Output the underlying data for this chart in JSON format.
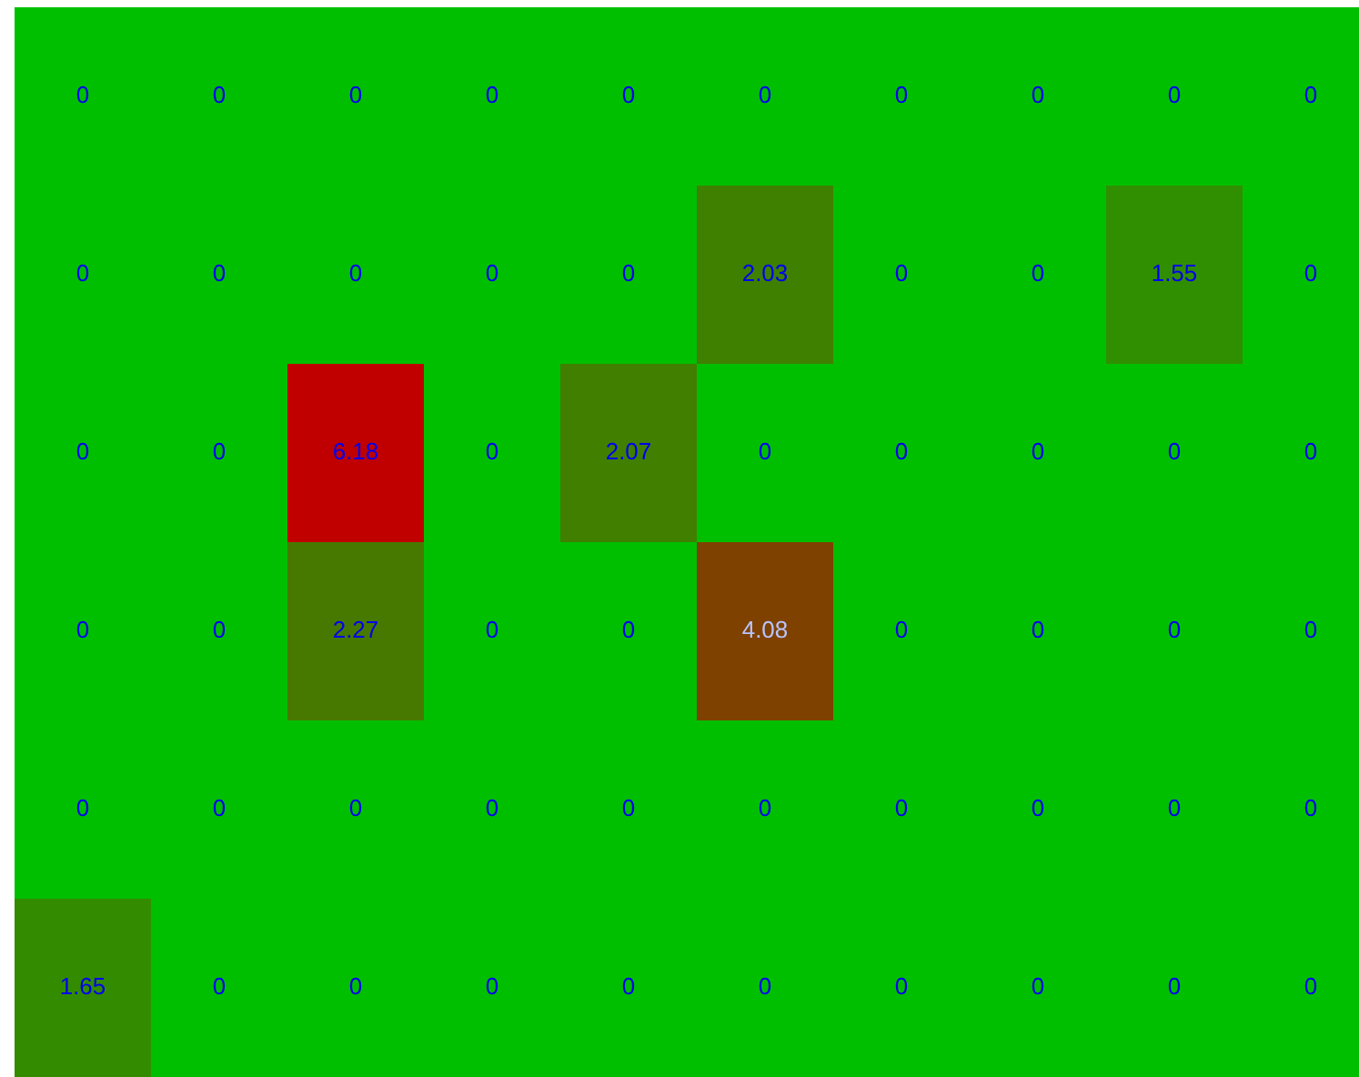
{
  "chart_data": {
    "type": "heatmap",
    "categories": [
      null,
      null,
      null,
      null,
      null,
      null,
      null,
      null,
      null,
      null
    ],
    "y_categories": [
      null,
      null,
      null,
      null,
      null,
      null
    ],
    "cells": [
      [
        0,
        0,
        0,
        0,
        0,
        0,
        0,
        0,
        0,
        0
      ],
      [
        0,
        0,
        0,
        0,
        0,
        2.03,
        0,
        0,
        1.55,
        0
      ],
      [
        0,
        0,
        6.18,
        0,
        2.07,
        0,
        0,
        0,
        0,
        0
      ],
      [
        0,
        0,
        2.27,
        0,
        0,
        4.08,
        0,
        0,
        0,
        0
      ],
      [
        0,
        0,
        0,
        0,
        0,
        0,
        0,
        0,
        0,
        0
      ],
      [
        1.65,
        0,
        0,
        0,
        0,
        0,
        0,
        0,
        0,
        0
      ]
    ],
    "colors": [
      "#00bf00",
      "#c00000"
    ],
    "data_labels": true
  }
}
